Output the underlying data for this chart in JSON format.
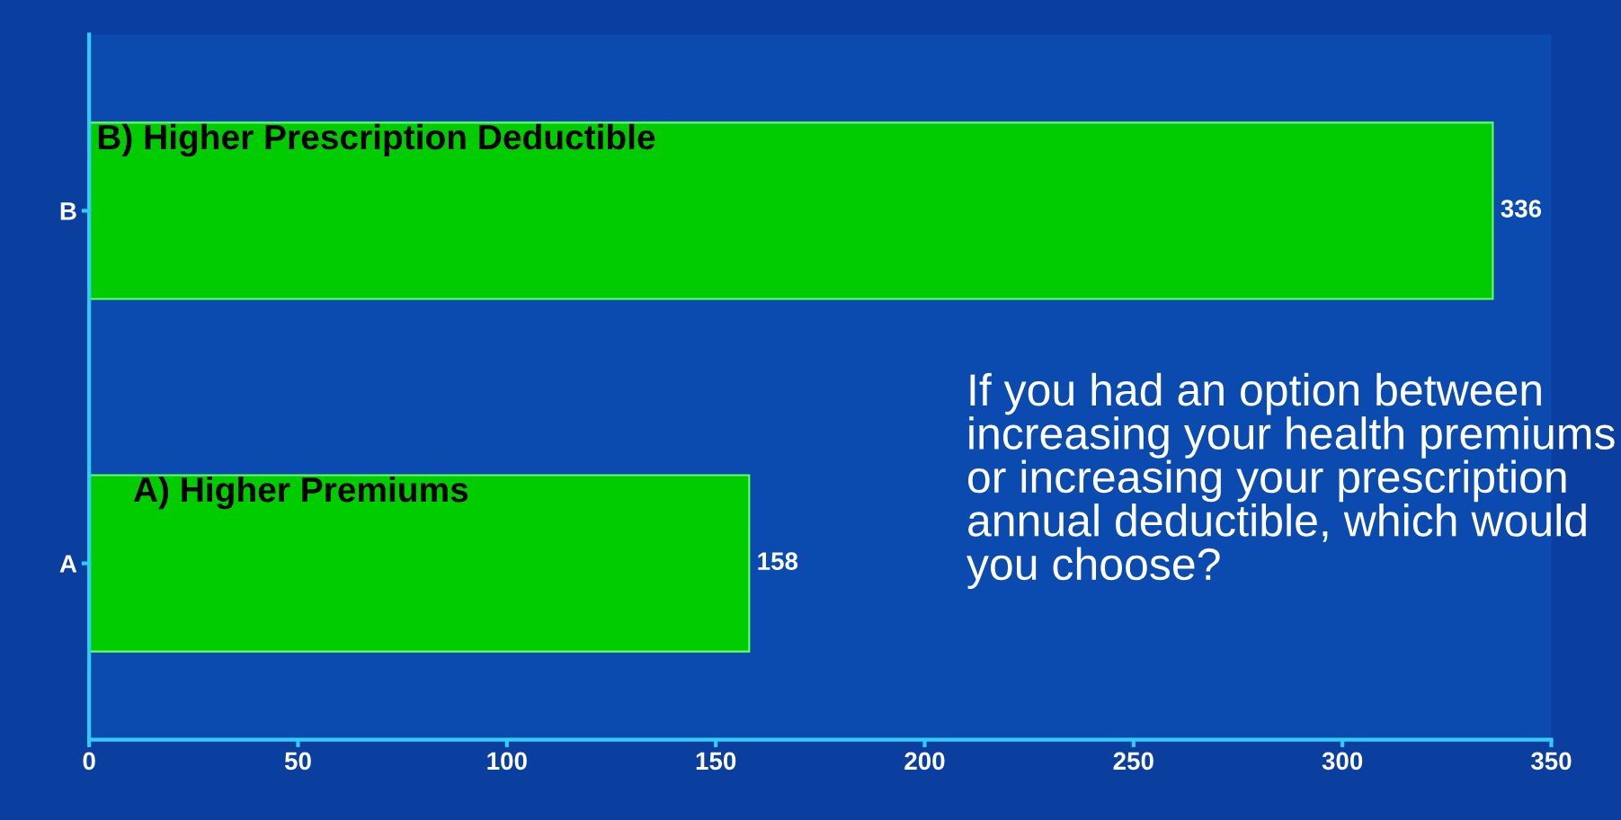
{
  "chart_data": {
    "type": "bar",
    "orientation": "horizontal",
    "categories": [
      "B",
      "A"
    ],
    "values": [
      336,
      158
    ],
    "color": "#00cc00",
    "data_labels": true,
    "xlim": [
      0,
      350
    ],
    "xticks": [
      0,
      50,
      100,
      150,
      200,
      250,
      300,
      350
    ],
    "grid": false,
    "legend": false,
    "annotations": [
      "B) Higher Prescription Deductible",
      "A) Higher Premiums",
      "If you had an option between increasing your health premiums or increasing your prescription annual deductible, which would you choose?"
    ]
  }
}
